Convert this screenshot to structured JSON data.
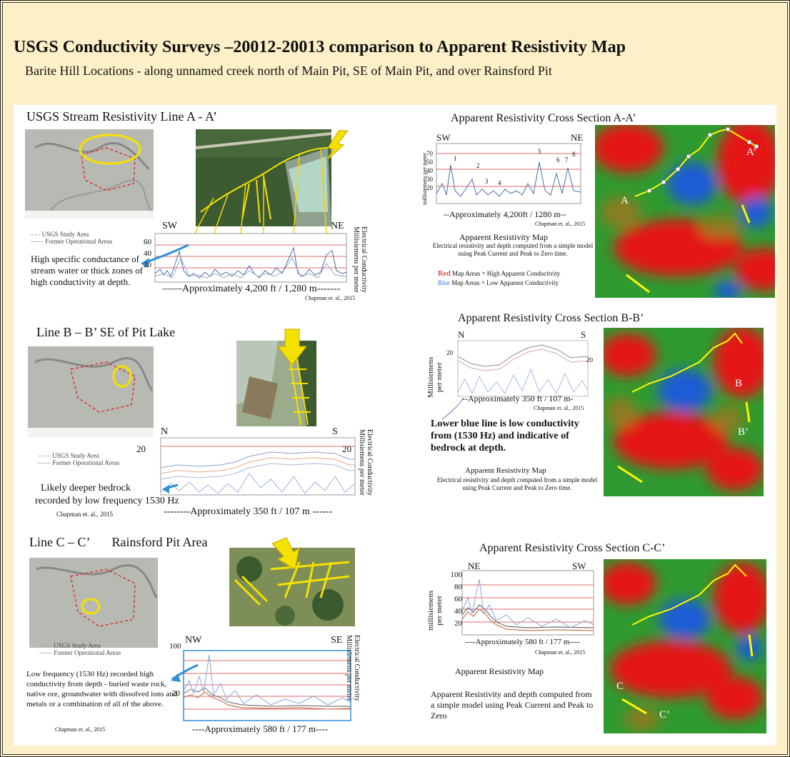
{
  "title": "USGS Conductivity Surveys –20012-20013  comparison to  Apparent Resistivity Map",
  "subtitle": "Barite Hill Locations - along unnamed creek north of Main Pit, SE of Main Pit, and over Rainsford Pit",
  "citation": "Chapman et. al., 2015",
  "lineA": {
    "heading": "USGS Stream Resistivity Line A - A’",
    "legend_study": "USGS Study Area",
    "legend_former": "Former Operational Areas",
    "start": "SW",
    "end": "NE",
    "ticks": [
      "60",
      "40",
      "20"
    ],
    "axis_line1": "Electrical Conductivity",
    "axis_line2": "Millisiemens per meter",
    "distance": "——Approximately 4,200 ft / 1,280 m-------",
    "note": "High specific conductance of stream water or thick zones of high conductivity at depth.",
    "citation": "Chapman et. al., 2015"
  },
  "lineB": {
    "heading": "Line B – B’  SE of Pit Lake",
    "legend_study": "USGS Study Area",
    "legend_former": "Former Operational Areas",
    "start": "N",
    "end": "S",
    "tick_left": "20",
    "tick_right": "20",
    "axis_line1": "Electrical Conductivity",
    "axis_line2": "Millisiemens per meter",
    "distance": "--------Approximately 350 ft / 107 m ------",
    "note_line1": "Likely deeper bedrock",
    "note_line2": "recorded by low frequency 1530 Hz",
    "citation": "Chapman et. al., 2015"
  },
  "lineC": {
    "heading_1": "Line C – C’",
    "heading_2": "Rainsford Pit Area",
    "legend_study": "USGS Study Area",
    "legend_former": "Former Operational Areas",
    "start": "NW",
    "end": "SE",
    "tick_top": "100",
    "tick_bottom": "20",
    "axis_line1": "Electrical Conductivity",
    "axis_line2": "Millisiemens per meter",
    "distance": "----Approximately 580 ft / 177 m----",
    "note": "Low frequency (1530 Hz) recorded high conductivity from depth - buried waste rock, native ore, groundwater with dissolved ions and metals or a combination of all of the above.",
    "citation": "Chapman et. al., 2015"
  },
  "crossA": {
    "heading": "Apparent Resistivity Cross Section A-A’",
    "start": "SW",
    "end": "NE",
    "ticks": [
      "70",
      "50",
      "40",
      "30",
      "20"
    ],
    "axis": "millisiemens per meter",
    "peaks": [
      "1",
      "2",
      "3",
      "4",
      "5",
      "6",
      "7",
      "8"
    ],
    "distance": "--Approximately 4,200ft / 1280 m--",
    "citation": "Chapman et. al., 2015",
    "map_heading": "Apparent Resistivity Map",
    "desc": "Electrical resistivity and depth computed from a simple model using Peak Current and Peak to Zero time.",
    "red_word": "Red",
    "red_rest": " Map Areas = High Apparent Conductivity",
    "blue_word": "Blue",
    "blue_rest": " Map Areas = Low Apparent Conductivity",
    "map_label_start": "A",
    "map_label_end": "A’"
  },
  "crossB": {
    "heading": "Apparent Resistivity Cross Section B-B’",
    "start": "N",
    "end": "S",
    "tick_left": "20",
    "tick_right": "20",
    "axis_line1": "Millisiemens",
    "axis_line2": "per meter",
    "distance": "--Approximately 350 ft / 107 m-",
    "citation": "Chapman et. al., 2015",
    "note": "Lower blue line is low conductivity from (1530 Hz) and indicative of bedrock at depth.",
    "map_heading": "Apparent Resistivity Map",
    "desc": "Electrical resistivity and depth computed from a simple model using Peak Current and Peak to Zero time.",
    "map_label_start": "B",
    "map_label_end": "B’"
  },
  "crossC": {
    "heading": "Apparent Resistivity Cross Section C-C’",
    "start": "NE",
    "end": "SW",
    "ticks": [
      "100",
      "80",
      "60",
      "40",
      "20"
    ],
    "axis_line1": "millisiemens",
    "axis_line2": "per meter",
    "distance": "----Approximately 580 ft / 177 m----",
    "citation": "Chapman et. al., 2015",
    "map_heading": "Apparent Resistivity Map",
    "desc": "Apparent Resistivity and depth computed from a simple model using Peak Current and Peak to Zero",
    "map_label_start": "C",
    "map_label_end": "C’"
  },
  "colors": {
    "frame_bg": "#fdf0c8",
    "arrow": "#f5e100",
    "callout": "#2f8fd8",
    "grid": "#e06a6a",
    "trace": "#4a6fa5"
  }
}
